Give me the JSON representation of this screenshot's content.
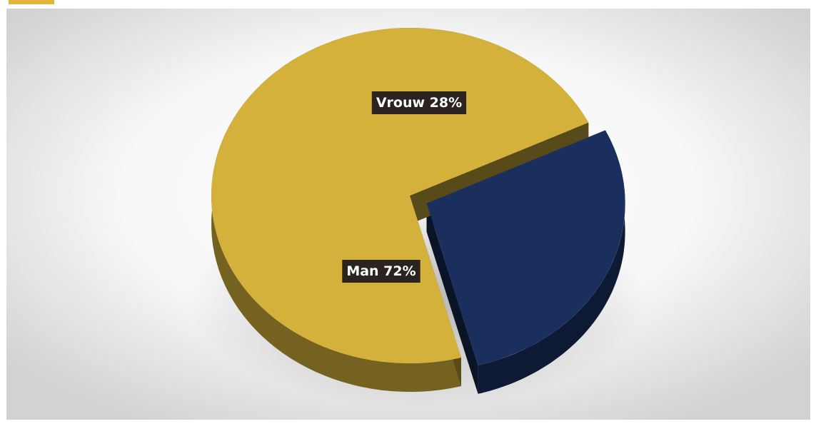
{
  "chart_data": {
    "type": "pie",
    "style": "3d-exploded",
    "slices": [
      {
        "name": "Vrouw",
        "value": 28,
        "label": "Vrouw 28%",
        "color": "#1a2f5e",
        "exploded": true
      },
      {
        "name": "Man",
        "value": 72,
        "label": "Man 72%",
        "color": "#d4b13b",
        "exploded": false
      }
    ],
    "legend": "none"
  },
  "colors": {
    "accent_tab": "#e5b53a",
    "label_background": "#2a2320",
    "label_text": "#ffffff"
  }
}
